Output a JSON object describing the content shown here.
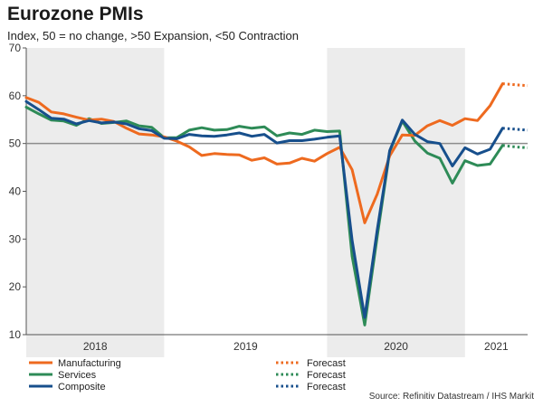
{
  "title": "Eurozone PMIs",
  "subtitle": "Index, 50 = no change, >50 Expansion, <50 Contraction",
  "source": "Source: Refinitiv Datastream / IHS Markit",
  "colors": {
    "manufacturing": "#ee6a1f",
    "services": "#2e8b57",
    "composite": "#174f8c",
    "reference_line": "#8c8c8c",
    "shading": "#ececec"
  },
  "chart_data": {
    "type": "line",
    "title": "Eurozone PMIs",
    "ylim": [
      10,
      70
    ],
    "yticks": [
      10,
      20,
      30,
      40,
      50,
      60,
      70
    ],
    "reference_line": 50,
    "xlim": [
      0,
      40
    ],
    "year_labels": [
      {
        "label": "2018",
        "center": 5.5
      },
      {
        "label": "2019",
        "center": 17.5
      },
      {
        "label": "2020",
        "center": 29.5
      },
      {
        "label": "2021",
        "center": 37.5
      }
    ],
    "shaded_years": [
      [
        0,
        11
      ],
      [
        24,
        35
      ]
    ],
    "x": [
      0,
      1,
      2,
      3,
      4,
      5,
      6,
      7,
      8,
      9,
      10,
      11,
      12,
      13,
      14,
      15,
      16,
      17,
      18,
      19,
      20,
      21,
      22,
      23,
      24,
      25,
      26,
      27,
      28,
      29,
      30,
      31,
      32,
      33,
      34,
      35,
      36,
      37,
      38
    ],
    "series": [
      {
        "name": "Manufacturing",
        "values": [
          59.6,
          58.6,
          56.6,
          56.2,
          55.5,
          54.9,
          55.1,
          54.6,
          53.2,
          52.0,
          51.8,
          51.4,
          50.5,
          49.3,
          47.5,
          47.9,
          47.7,
          47.6,
          46.5,
          47.0,
          45.7,
          45.9,
          46.9,
          46.3,
          47.9,
          49.2,
          44.5,
          33.4,
          39.4,
          47.4,
          51.8,
          51.7,
          53.7,
          54.8,
          53.8,
          55.2,
          54.8,
          57.9,
          62.5
        ]
      },
      {
        "name": "Services",
        "values": [
          57.6,
          56.2,
          54.9,
          54.7,
          53.8,
          55.2,
          54.2,
          54.4,
          54.7,
          53.7,
          53.4,
          51.2,
          51.2,
          52.8,
          53.3,
          52.8,
          52.9,
          53.6,
          53.2,
          53.5,
          51.6,
          52.2,
          51.9,
          52.8,
          52.5,
          52.6,
          26.4,
          12.0,
          30.5,
          48.3,
          54.7,
          50.5,
          48.0,
          46.9,
          41.7,
          46.4,
          45.4,
          45.7,
          49.6
        ]
      },
      {
        "name": "Composite",
        "values": [
          58.8,
          57.1,
          55.3,
          55.1,
          54.1,
          54.8,
          54.3,
          54.5,
          54.1,
          53.1,
          52.7,
          51.1,
          51.0,
          51.9,
          51.6,
          51.5,
          51.8,
          52.2,
          51.5,
          51.9,
          50.1,
          50.6,
          50.6,
          50.9,
          51.3,
          51.6,
          29.7,
          13.6,
          31.9,
          48.5,
          54.9,
          51.9,
          50.4,
          50.0,
          45.3,
          49.1,
          47.8,
          48.8,
          53.2
        ]
      }
    ],
    "forecast": {
      "x": [
        38,
        39,
        40
      ],
      "series": [
        {
          "name": "Manufacturing",
          "values": [
            62.5,
            62.3,
            62.1
          ]
        },
        {
          "name": "Services",
          "values": [
            49.6,
            49.3,
            49.1
          ]
        },
        {
          "name": "Composite",
          "values": [
            53.2,
            53.0,
            52.8
          ]
        }
      ]
    },
    "legend": [
      {
        "label": "Manufacturing",
        "forecast_label": "Forecast",
        "key": "manufacturing"
      },
      {
        "label": "Services",
        "forecast_label": "Forecast",
        "key": "services"
      },
      {
        "label": "Composite",
        "forecast_label": "Forecast",
        "key": "composite"
      }
    ]
  }
}
